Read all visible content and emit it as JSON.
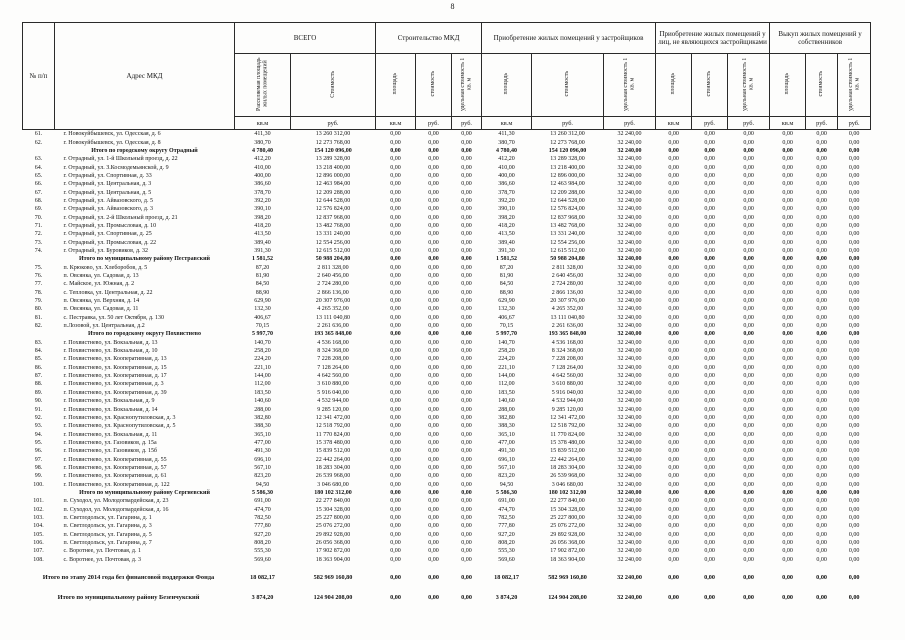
{
  "page": {
    "number": "8"
  },
  "constants": {
    "zero": "0,00",
    "unit_cost": "32 240,00"
  },
  "table": {
    "col_num": "№ п/п",
    "col_address": "Адрес МКД",
    "groups": [
      {
        "label": "ВСЕГО",
        "subs": [
          "Расселяемая площадь жилых помещений",
          "Стоимость"
        ],
        "units": [
          "кв.м",
          "руб."
        ]
      },
      {
        "label": "Строительство МКД",
        "subs": [
          "площадь",
          "стоимость",
          "удельная стоимость 1 кв. м"
        ],
        "units": [
          "кв.м",
          "руб.",
          "руб."
        ]
      },
      {
        "label": "Приобретение жилых помещений у застройщиков",
        "subs": [
          "площадь",
          "стоимость",
          "удельная стоимость 1 кв. м"
        ],
        "units": [
          "кв.м",
          "руб.",
          "руб."
        ]
      },
      {
        "label": "Приобретение жилых помещений у лиц, не являющихся застройщиками",
        "subs": [
          "площадь",
          "стоимость",
          "удельная стоимость 1 кв. м"
        ],
        "units": [
          "кв.м",
          "руб.",
          "руб."
        ]
      },
      {
        "label": "Выкуп жилых помещений у собственников",
        "subs": [
          "площадь",
          "стоимость",
          "удельная стоимость 1 кв. м"
        ],
        "units": [
          "кв.м",
          "руб.",
          "руб."
        ]
      }
    ],
    "rows": [
      {
        "n": "61.",
        "a": "г. Новокуйбышевск, ул. Одесская, д. 6",
        "s": "411,30",
        "c": "13 260 312,00"
      },
      {
        "n": "62.",
        "a": "г. Новокуйбышевск, ул. Одесская, д. 8",
        "s": "380,70",
        "c": "12 273 768,00"
      },
      {
        "t": "s",
        "a": "Итого по городскому округу Отрадный",
        "s": "4 780,40",
        "c": "154 120 096,00"
      },
      {
        "n": "63.",
        "a": "г. Отрадный, ул. 1-й Школьный проезд, д. 22",
        "s": "412,20",
        "c": "13 289 328,00"
      },
      {
        "n": "64.",
        "a": "г. Отрадный, ул. З.Космодемьянской, д. 9",
        "s": "410,00",
        "c": "13 218 400,00"
      },
      {
        "n": "65.",
        "a": "г. Отрадный, ул. Спортивная, д. 33",
        "s": "400,00",
        "c": "12 896 000,00"
      },
      {
        "n": "66.",
        "a": "г. Отрадный, ул. Центральная, д. 3",
        "s": "386,60",
        "c": "12 463 984,00"
      },
      {
        "n": "67.",
        "a": "г. Отрадный, ул. Центральная, д. 5",
        "s": "378,70",
        "c": "12 209 288,00"
      },
      {
        "n": "68.",
        "a": "г. Отрадный, ул. Айвазовского, д. 5",
        "s": "392,20",
        "c": "12 644 528,00"
      },
      {
        "n": "69.",
        "a": "г. Отрадный, ул. Айвазовского, д. 3",
        "s": "390,10",
        "c": "12 576 824,00"
      },
      {
        "n": "70.",
        "a": "г. Отрадный, ул. 2-й Школьный проезд, д. 21",
        "s": "398,20",
        "c": "12 837 968,00"
      },
      {
        "n": "71.",
        "a": "г. Отрадный, ул. Промысловая, д. 10",
        "s": "418,20",
        "c": "13 482 768,00"
      },
      {
        "n": "72.",
        "a": "г. Отрадный, ул. Спортивная, д. 25",
        "s": "413,50",
        "c": "13 331 240,00"
      },
      {
        "n": "73.",
        "a": "г. Отрадный, ул. Промысловая, д. 22",
        "s": "389,40",
        "c": "12 554 256,00"
      },
      {
        "n": "74.",
        "a": "г. Отрадный, ул. Буровиков, д. 32",
        "s": "391,30",
        "c": "12 615 512,00"
      },
      {
        "t": "s",
        "a": "Итого по муниципальному району Пестравский",
        "s": "1 581,52",
        "c": "50 988 204,80"
      },
      {
        "n": "75.",
        "a": "п. Крюково, ул. Хлеборобов, д. 5",
        "s": "87,20",
        "c": "2 811 328,00"
      },
      {
        "n": "76.",
        "a": "п. Овсянка, ул. Садовая, д. 13",
        "s": "81,90",
        "c": "2 640 456,00"
      },
      {
        "n": "77.",
        "a": "с. Майское, ул. Южная, д. 2",
        "s": "84,50",
        "c": "2 724 280,00"
      },
      {
        "n": "78.",
        "a": "с. Тепловка, ул. Центральная, д. 22",
        "s": "88,90",
        "c": "2 866 136,00"
      },
      {
        "n": "79.",
        "a": "п. Овсянка, ул. Верхняя, д. 14",
        "s": "629,90",
        "c": "20 307 976,00"
      },
      {
        "n": "80.",
        "a": "п. Овсянка, ул. Садовая, д. 11",
        "s": "132,30",
        "c": "4 265 352,00"
      },
      {
        "n": "81.",
        "a": "с. Пестравка, ул. 50 лет Октября, д. 130",
        "s": "406,67",
        "c": "13 111 040,80"
      },
      {
        "n": "82.",
        "a": "п.Лозовой, ул. Центральная, д.2",
        "s": "70,15",
        "c": "2 261 636,00"
      },
      {
        "t": "s",
        "a": "Итого по городскому округу Похвистнево",
        "s": "5 997,70",
        "c": "193 365 848,00"
      },
      {
        "n": "83.",
        "a": "г. Похвистнево, ул. Вокзальная, д. 13",
        "s": "140,70",
        "c": "4 536 168,00"
      },
      {
        "n": "84.",
        "a": "г. Похвистнево, ул. Вокзальная, д. 10",
        "s": "258,20",
        "c": "8 324 368,00"
      },
      {
        "n": "85.",
        "a": "г. Похвистнево, ул. Кооперативная, д. 13",
        "s": "224,20",
        "c": "7 228 208,00"
      },
      {
        "n": "86.",
        "a": "г. Похвистнево, ул. Кооперативная, д. 15",
        "s": "221,10",
        "c": "7 128 264,00"
      },
      {
        "n": "87.",
        "a": "г. Похвистнево, ул. Кооперативная, д. 17",
        "s": "144,00",
        "c": "4 642 560,00"
      },
      {
        "n": "88.",
        "a": "г. Похвистнево, ул. Кооперативная, д. 3",
        "s": "112,00",
        "c": "3 610 880,00"
      },
      {
        "n": "89.",
        "a": "г. Похвистнево, ул. Кооперативная, д. 39",
        "s": "183,50",
        "c": "5 916 040,00"
      },
      {
        "n": "90.",
        "a": "г. Похвистнево, ул. Вокзальная, д. 9",
        "s": "140,60",
        "c": "4 532 944,00"
      },
      {
        "n": "91.",
        "a": "г. Похвистнево, ул. Вокзальная, д. 14",
        "s": "288,00",
        "c": "9 285 120,00"
      },
      {
        "n": "92.",
        "a": "г. Похвистнево, ул. Краснопутиловская, д. 3",
        "s": "382,80",
        "c": "12 341 472,00"
      },
      {
        "n": "93.",
        "a": "г. Похвистнево, ул. Краснопутиловская, д. 5",
        "s": "388,30",
        "c": "12 518 792,00"
      },
      {
        "n": "94.",
        "a": "г. Похвистнево, ул. Вокзальная, д. 11",
        "s": "365,10",
        "c": "11 770 824,00"
      },
      {
        "n": "95.",
        "a": "г. Похвистнево, ул. Газовиков, д. 15а",
        "s": "477,00",
        "c": "15 378 480,00"
      },
      {
        "n": "96.",
        "a": "г. Похвистнево, ул. Газовиков, д. 15б",
        "s": "491,30",
        "c": "15 839 512,00"
      },
      {
        "n": "97.",
        "a": "г. Похвистнево, ул. Кооперативная, д. 55",
        "s": "696,10",
        "c": "22 442 264,00"
      },
      {
        "n": "98.",
        "a": "г. Похвистнево, ул. Кооперативная, д. 57",
        "s": "567,10",
        "c": "18 283 304,00"
      },
      {
        "n": "99.",
        "a": "г. Похвистнево, ул. Кооперативная, д. 61",
        "s": "823,20",
        "c": "26 539 968,00"
      },
      {
        "n": "100.",
        "a": "г. Похвистнево, ул. Кооперативная, д. 122",
        "s": "94,50",
        "c": "3 046 680,00"
      },
      {
        "t": "s",
        "a": "Итого по муниципальному району Сергиевский",
        "s": "5 586,30",
        "c": "180 102 312,00"
      },
      {
        "n": "101.",
        "a": "п. Суходол, ул. Молодогвардейская, д. 23",
        "s": "691,00",
        "c": "22 277 840,00"
      },
      {
        "n": "102.",
        "a": "п. Суходол, ул. Молодогвардейская, д. 16",
        "s": "474,70",
        "c": "15 304 328,00"
      },
      {
        "n": "103.",
        "a": "п. Светлодольск, ул. Гагарина, д. 1",
        "s": "782,50",
        "c": "25 227 800,00"
      },
      {
        "n": "104.",
        "a": "п. Светлодольск, ул. Гагарина, д. 3",
        "s": "777,80",
        "c": "25 076 272,00"
      },
      {
        "n": "105.",
        "a": "п. Светлодольск, ул. Гагарина, д. 5",
        "s": "927,20",
        "c": "29 892 928,00"
      },
      {
        "n": "106.",
        "a": "п. Светлодольск, ул. Гагарина, д. 7",
        "s": "808,20",
        "c": "26 056 368,00"
      },
      {
        "n": "107.",
        "a": "с. Воротнее, ул. Почтовая, д. 1",
        "s": "555,30",
        "c": "17 902 872,00"
      },
      {
        "n": "108.",
        "a": "с. Воротнее, ул. Почтовая, д. 3",
        "s": "569,60",
        "c": "18 363 904,00"
      }
    ],
    "footer_totals": [
      {
        "a": "Итого по этапу 2014 года без финансовой поддержки Фонда",
        "s": "18 082,17",
        "c": "582 969 160,80"
      },
      {
        "a": "Итого по муниципальному району Безенчукский",
        "s": "3 874,20",
        "c": "124 904 208,00"
      }
    ]
  }
}
